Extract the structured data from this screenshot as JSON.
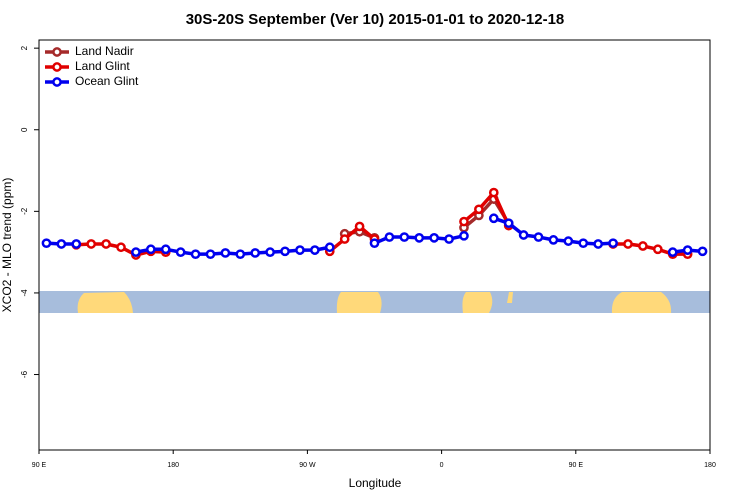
{
  "chart_data": {
    "type": "line",
    "title": "30S-20S September (Ver 10)   2015-01-01 to 2020-12-18",
    "x_label": "Longitude",
    "y_label": "XCO2 - MLO trend (ppm)",
    "x": [
      95,
      105,
      115,
      125,
      135,
      145,
      155,
      165,
      175,
      185,
      195,
      205,
      215,
      225,
      235,
      245,
      255,
      265,
      275,
      285,
      295,
      305,
      315,
      325,
      335,
      345,
      355,
      365,
      375,
      385,
      395,
      405,
      415,
      425,
      435,
      445,
      455,
      465,
      475,
      485,
      495,
      505,
      515,
      525,
      535
    ],
    "series": [
      {
        "name": "Land Nadir",
        "color": "#a52a2a",
        "values": [
          null,
          null,
          null,
          null,
          null,
          null,
          null,
          null,
          null,
          null,
          null,
          null,
          null,
          null,
          null,
          null,
          null,
          null,
          null,
          null,
          -2.55,
          -2.5,
          -2.65,
          null,
          null,
          null,
          null,
          null,
          -2.4,
          -2.1,
          -1.7,
          -2.3,
          null,
          null,
          null,
          null,
          null,
          null,
          null,
          null,
          null,
          null,
          null,
          null,
          null
        ]
      },
      {
        "name": "Land Glint",
        "color": "#e00000",
        "values": [
          null,
          null,
          -2.82,
          -2.8,
          -2.8,
          -2.88,
          -3.07,
          -2.98,
          -3.0,
          null,
          null,
          null,
          null,
          null,
          null,
          null,
          null,
          null,
          null,
          -2.98,
          -2.68,
          -2.37,
          -2.68,
          null,
          null,
          null,
          null,
          null,
          -2.25,
          -1.95,
          -1.54,
          -2.35,
          null,
          null,
          null,
          null,
          null,
          null,
          -2.8,
          -2.8,
          -2.85,
          -2.93,
          -3.05,
          -3.05,
          null
        ]
      },
      {
        "name": "Ocean Glint",
        "color": "#0000ee",
        "values": [
          -2.78,
          -2.8,
          -2.8,
          null,
          null,
          null,
          -3.0,
          -2.93,
          -2.93,
          -3.0,
          -3.05,
          -3.05,
          -3.02,
          -3.05,
          -3.02,
          -3.0,
          -2.98,
          -2.95,
          -2.95,
          -2.88,
          null,
          null,
          -2.78,
          -2.63,
          -2.63,
          -2.65,
          -2.65,
          -2.68,
          -2.6,
          null,
          -2.17,
          -2.29,
          -2.58,
          -2.63,
          -2.7,
          -2.73,
          -2.78,
          -2.8,
          -2.78,
          null,
          null,
          null,
          -3.0,
          -2.95,
          -2.98
        ]
      }
    ],
    "xlim": [
      90,
      540
    ],
    "xticks": [
      {
        "value": 90,
        "label": "90 E"
      },
      180,
      {
        "value": 270,
        "label": "90 W"
      },
      {
        "value": 360,
        "label": "0"
      },
      {
        "value": 450,
        "label": "90 E"
      },
      {
        "value": 540,
        "label": "180"
      }
    ],
    "ylim": [
      -7.85,
      2.2
    ],
    "yticks": [
      -6,
      -4,
      -2,
      0,
      2
    ],
    "grid": false,
    "legend": "top-left"
  }
}
